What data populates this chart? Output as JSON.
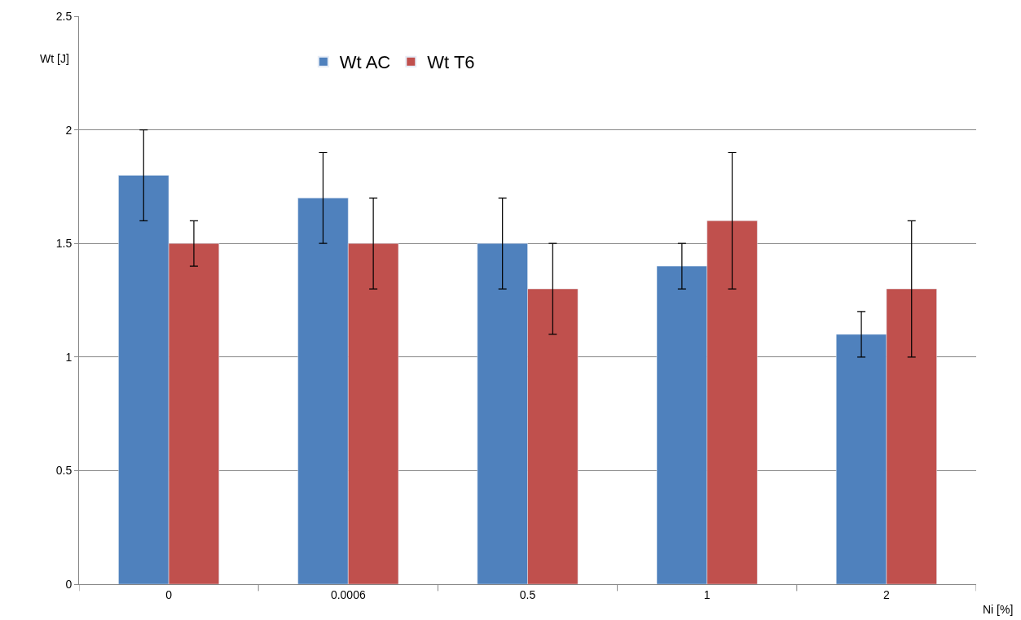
{
  "chart_data": {
    "type": "bar",
    "xlabel": "Ni [%]",
    "ylabel": "Wt [J]",
    "categories": [
      "0",
      "0.0006",
      "0.5",
      "1",
      "2"
    ],
    "series": [
      {
        "name": "Wt AC",
        "color": "#4f81bd",
        "values": [
          1.8,
          1.7,
          1.5,
          1.4,
          1.1
        ],
        "errors": [
          0.2,
          0.2,
          0.2,
          0.1,
          0.1
        ]
      },
      {
        "name": "Wt T6",
        "color": "#c0504d",
        "values": [
          1.5,
          1.5,
          1.3,
          1.6,
          1.3
        ],
        "errors": [
          0.1,
          0.2,
          0.2,
          0.3,
          0.3
        ]
      }
    ],
    "ylim": [
      0,
      2.5
    ],
    "yticks": [
      0,
      0.5,
      1,
      1.5,
      2,
      2.5
    ],
    "grid": "y",
    "legend": "top"
  }
}
